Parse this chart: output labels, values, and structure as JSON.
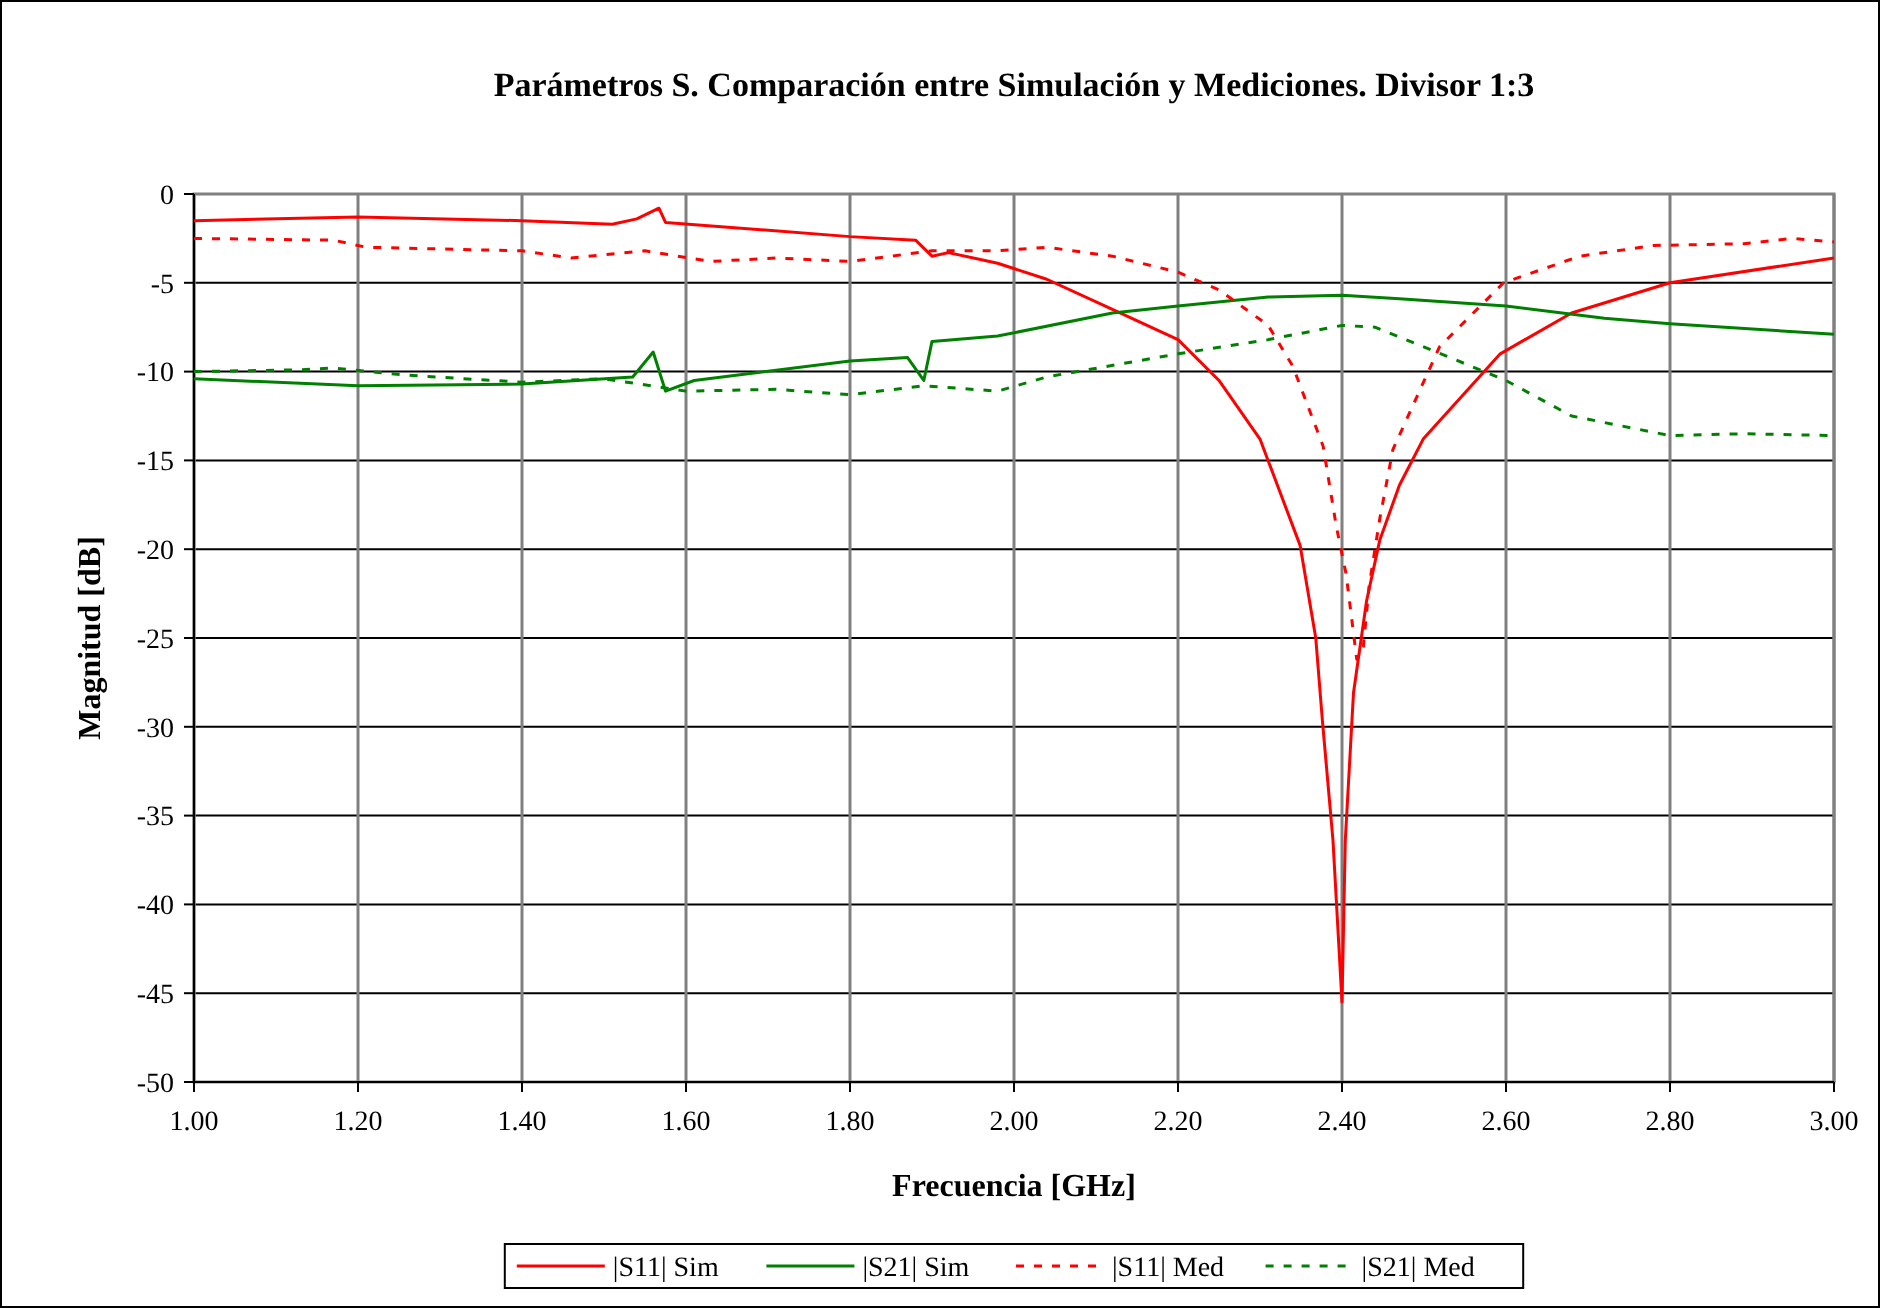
{
  "chart_data": {
    "type": "line",
    "title": "Parámetros S. Comparación entre Simulación y Mediciones. Divisor 1:3",
    "xlabel": "Frecuencia [GHz]",
    "ylabel": "Magnitud [dB]",
    "xlim": [
      1,
      3
    ],
    "ylim": [
      -50,
      0
    ],
    "xticks": [
      {
        "value": 1,
        "label": "1.00"
      },
      {
        "value": 1.2,
        "label": "1.20"
      },
      {
        "value": 1.4,
        "label": "1.40"
      },
      {
        "value": 1.6,
        "label": "1.60"
      },
      {
        "value": 1.8,
        "label": "1.80"
      },
      {
        "value": 2,
        "label": "2.00"
      },
      {
        "value": 2.2,
        "label": "2.20"
      },
      {
        "value": 2.4,
        "label": "2.40"
      },
      {
        "value": 2.6,
        "label": "2.60"
      },
      {
        "value": 2.8,
        "label": "2.80"
      },
      {
        "value": 3,
        "label": "3.00"
      }
    ],
    "yticks": [
      0,
      -5,
      -10,
      -15,
      -20,
      -25,
      -30,
      -35,
      -40,
      -45,
      -50
    ],
    "grid": true,
    "legend": "bottom",
    "series": [
      {
        "name": "|S11| Sim",
        "color": "#ff0000",
        "line_style": "solid",
        "x": [
          1,
          1.2,
          1.4,
          1.51,
          1.54,
          1.567,
          1.575,
          1.8,
          1.88,
          1.9,
          1.92,
          1.98,
          2.04,
          2.12,
          2.2,
          2.25,
          2.3,
          2.349,
          2.368,
          2.376,
          2.389,
          2.4,
          2.404,
          2.414,
          2.43,
          2.446,
          2.47,
          2.499,
          2.593,
          2.68,
          2.8,
          3
        ],
        "values": [
          -1.5,
          -1.3,
          -1.5,
          -1.7,
          -1.4,
          -0.8,
          -1.6,
          -2.4,
          -2.6,
          -3.5,
          -3.3,
          -3.9,
          -4.8,
          -6.5,
          -8.2,
          -10.5,
          -13.8,
          -19.8,
          -25,
          -29.6,
          -36.4,
          -45.5,
          -36.4,
          -28.1,
          -22.9,
          -19.5,
          -16.4,
          -13.8,
          -9,
          -6.7,
          -5,
          -3.6
        ]
      },
      {
        "name": "|S21| Sim",
        "color": "#008000",
        "line_style": "solid",
        "x": [
          1,
          1.2,
          1.4,
          1.535,
          1.56,
          1.575,
          1.61,
          1.8,
          1.87,
          1.89,
          1.9,
          1.98,
          2.12,
          2.2,
          2.31,
          2.4,
          2.47,
          2.6,
          2.72,
          2.8,
          3
        ],
        "values": [
          -10.4,
          -10.8,
          -10.7,
          -10.3,
          -8.9,
          -11.1,
          -10.5,
          -9.4,
          -9.2,
          -10.5,
          -8.3,
          -8,
          -6.7,
          -6.3,
          -5.8,
          -5.7,
          -5.9,
          -6.3,
          -7,
          -7.3,
          -7.9
        ]
      },
      {
        "name": "|S11| Med",
        "color": "#ff0000",
        "line_style": "dashed",
        "x": [
          1,
          1.17,
          1.21,
          1.4,
          1.46,
          1.55,
          1.63,
          1.71,
          1.8,
          1.9,
          1.98,
          2.04,
          2.12,
          2.2,
          2.25,
          2.31,
          2.34,
          2.377,
          2.393,
          2.405,
          2.418,
          2.426,
          2.433,
          2.446,
          2.462,
          2.519,
          2.597,
          2.69,
          2.78,
          2.89,
          2.95,
          3
        ],
        "values": [
          -2.5,
          -2.6,
          -3,
          -3.2,
          -3.6,
          -3.2,
          -3.8,
          -3.6,
          -3.8,
          -3.2,
          -3.2,
          -3,
          -3.5,
          -4.4,
          -5.4,
          -7.4,
          -9.7,
          -14.2,
          -18.7,
          -21.4,
          -26.2,
          -25.5,
          -22.1,
          -18.3,
          -14.4,
          -8.6,
          -5,
          -3.5,
          -2.9,
          -2.8,
          -2.5,
          -2.7
        ]
      },
      {
        "name": "|S21| Med",
        "color": "#008000",
        "line_style": "dashed",
        "x": [
          1,
          1.13,
          1.17,
          1.26,
          1.4,
          1.5,
          1.6,
          1.71,
          1.8,
          1.89,
          1.98,
          2.04,
          2.2,
          2.31,
          2.4,
          2.44,
          2.51,
          2.6,
          2.68,
          2.8,
          2.89,
          3
        ],
        "values": [
          -10,
          -9.9,
          -9.8,
          -10.2,
          -10.6,
          -10.4,
          -11.1,
          -11,
          -11.3,
          -10.8,
          -11.1,
          -10.3,
          -9,
          -8.2,
          -7.4,
          -7.5,
          -8.8,
          -10.5,
          -12.5,
          -13.6,
          -13.5,
          -13.6
        ]
      }
    ]
  }
}
